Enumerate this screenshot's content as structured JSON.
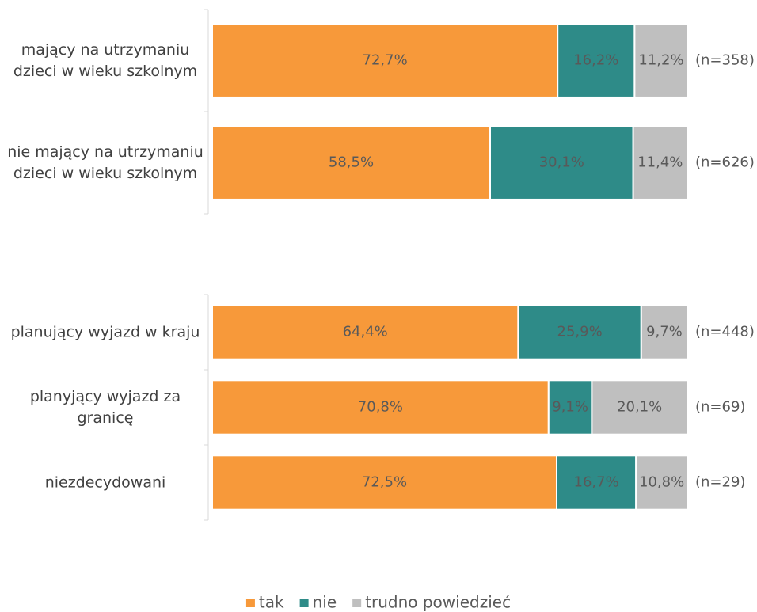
{
  "chart_data": [
    {
      "type": "bar",
      "orientation": "horizontal",
      "stacked": true,
      "categories": [
        "mający na utrzymaniu dzieci w wieku szkolnym",
        "nie mający na utrzymaniu dzieci w wieku szkolnym"
      ],
      "series": [
        {
          "color": "#F7993A",
          "values": [
            72.7,
            58.5
          ],
          "value_labels": [
            "72,7%",
            "58,5%"
          ]
        },
        {
          "color": "#2E8B88",
          "values": [
            16.2,
            30.1
          ],
          "value_labels": [
            "16,2%",
            "30,1%"
          ]
        },
        {
          "color": "#BFBFBF",
          "values": [
            11.2,
            11.4
          ],
          "value_labels": [
            "11,2%",
            "11,4%"
          ]
        }
      ],
      "annotations": [
        "(n=358)",
        "(n=626)"
      ],
      "xlim": [
        0,
        100
      ]
    },
    {
      "type": "bar",
      "orientation": "horizontal",
      "stacked": true,
      "categories": [
        "planujący wyjazd w kraju",
        "planyjący wyjazd za granicę",
        "niezdecydowani"
      ],
      "series": [
        {
          "name": "tak",
          "color": "#F7993A",
          "values": [
            64.4,
            70.8,
            72.5
          ],
          "value_labels": [
            "64,4%",
            "70,8%",
            "72,5%"
          ]
        },
        {
          "name": "nie",
          "color": "#2E8B88",
          "values": [
            25.9,
            9.1,
            16.7
          ],
          "value_labels": [
            "25,9%",
            "9,1%",
            "16,7%"
          ]
        },
        {
          "name": "trudno powiedzieć",
          "color": "#BFBFBF",
          "values": [
            9.7,
            20.1,
            10.8
          ],
          "value_labels": [
            "9,7%",
            "20,1%",
            "10,8%"
          ]
        }
      ],
      "annotations": [
        "(n=448)",
        "(n=69)",
        "(n=29)"
      ],
      "xlim": [
        0,
        100
      ],
      "legend": "bottom"
    }
  ]
}
